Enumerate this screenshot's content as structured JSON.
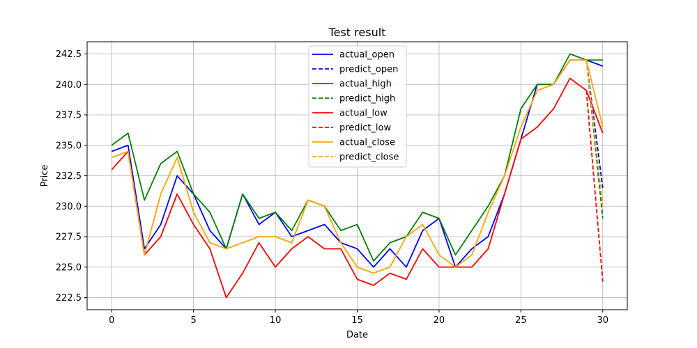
{
  "chart_data": {
    "type": "line",
    "title": "Test result",
    "xlabel": "Date",
    "ylabel": "Price",
    "xlim": [
      -1.5,
      31.5
    ],
    "ylim": [
      221.5,
      243.5
    ],
    "xticks": [
      0,
      5,
      10,
      15,
      20,
      25,
      30
    ],
    "yticks": [
      222.5,
      225.0,
      227.5,
      230.0,
      232.5,
      235.0,
      237.5,
      240.0,
      242.5
    ],
    "grid": true,
    "legend_position": "top-center",
    "series": [
      {
        "name": "actual_open",
        "color": "#0000ff",
        "dashed": false,
        "x": [
          0,
          1,
          2,
          3,
          4,
          5,
          6,
          7,
          8,
          9,
          10,
          11,
          12,
          13,
          14,
          15,
          16,
          17,
          18,
          19,
          20,
          21,
          22,
          23,
          24,
          25,
          26,
          27,
          28,
          29,
          30
        ],
        "values": [
          234.5,
          235.0,
          226.5,
          228.5,
          232.5,
          231.0,
          228.0,
          226.5,
          231.0,
          228.5,
          229.5,
          227.5,
          228.0,
          228.5,
          227.0,
          226.5,
          225.0,
          226.5,
          225.0,
          228.0,
          229.0,
          225.0,
          226.5,
          227.5,
          231.0,
          235.5,
          240.0,
          240.0,
          242.0,
          242.0,
          241.5
        ]
      },
      {
        "name": "predict_open",
        "color": "#0000ff",
        "dashed": true,
        "x": [
          29,
          30
        ],
        "values": [
          242.0,
          231.5
        ]
      },
      {
        "name": "actual_high",
        "color": "#008000",
        "dashed": false,
        "x": [
          0,
          1,
          2,
          3,
          4,
          5,
          6,
          7,
          8,
          9,
          10,
          11,
          12,
          13,
          14,
          15,
          16,
          17,
          18,
          19,
          20,
          21,
          22,
          23,
          24,
          25,
          26,
          27,
          28,
          29,
          30
        ],
        "values": [
          235.0,
          236.0,
          230.5,
          233.5,
          234.5,
          231.0,
          229.5,
          226.5,
          231.0,
          229.0,
          229.5,
          228.0,
          230.5,
          230.0,
          228.0,
          228.5,
          225.5,
          227.0,
          227.5,
          229.5,
          229.0,
          226.0,
          228.0,
          230.0,
          232.5,
          238.0,
          240.0,
          240.0,
          242.5,
          242.0,
          242.0
        ]
      },
      {
        "name": "predict_high",
        "color": "#008000",
        "dashed": true,
        "x": [
          29,
          30
        ],
        "values": [
          242.0,
          229.0
        ]
      },
      {
        "name": "actual_low",
        "color": "#ff0000",
        "dashed": false,
        "x": [
          0,
          1,
          2,
          3,
          4,
          5,
          6,
          7,
          8,
          9,
          10,
          11,
          12,
          13,
          14,
          15,
          16,
          17,
          18,
          19,
          20,
          21,
          22,
          23,
          24,
          25,
          26,
          27,
          28,
          29,
          30
        ],
        "values": [
          233.0,
          234.5,
          226.0,
          227.5,
          231.0,
          228.5,
          226.5,
          222.5,
          224.5,
          227.0,
          225.0,
          226.5,
          227.5,
          226.5,
          226.5,
          224.0,
          223.5,
          224.5,
          224.0,
          226.5,
          225.0,
          225.0,
          225.0,
          226.5,
          231.0,
          235.5,
          236.5,
          238.0,
          240.5,
          239.5,
          236.0
        ]
      },
      {
        "name": "predict_low",
        "color": "#ff0000",
        "dashed": true,
        "x": [
          29,
          30
        ],
        "values": [
          239.5,
          223.8
        ]
      },
      {
        "name": "actual_close",
        "color": "#ffa500",
        "dashed": false,
        "x": [
          0,
          1,
          2,
          3,
          4,
          5,
          6,
          7,
          8,
          9,
          10,
          11,
          12,
          13,
          14,
          15,
          16,
          17,
          18,
          19,
          20,
          21,
          22,
          23,
          24,
          25,
          26,
          27,
          28,
          29,
          30
        ],
        "values": [
          234.0,
          234.5,
          226.0,
          231.0,
          234.0,
          229.5,
          227.0,
          226.5,
          227.0,
          227.5,
          227.5,
          227.0,
          230.5,
          230.0,
          227.0,
          225.0,
          224.5,
          225.0,
          227.5,
          228.5,
          226.0,
          225.0,
          226.0,
          229.5,
          232.5,
          236.5,
          239.5,
          240.0,
          242.0,
          242.0,
          236.5
        ]
      },
      {
        "name": "predict_close",
        "color": "#ffa500",
        "dashed": true,
        "x": [
          29,
          30
        ],
        "values": [
          242.0,
          230.0
        ]
      }
    ]
  }
}
